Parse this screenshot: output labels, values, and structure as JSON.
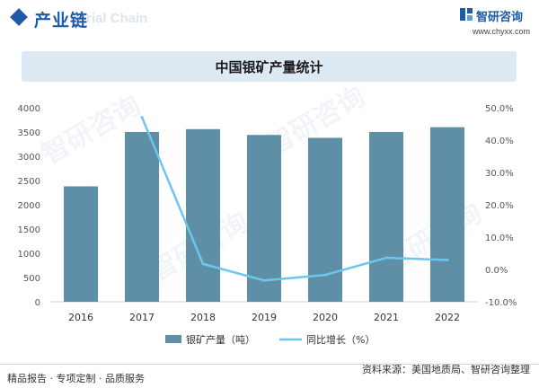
{
  "header": {
    "section_title": "产业链",
    "section_sub": "rial Chain",
    "brand_name": "智研咨询",
    "brand_url": "www.chyxx.com"
  },
  "watermark": "智研咨询",
  "footer": {
    "left": "精品报告 · 专项定制 · 品质服务",
    "right": "资料来源：美国地质局、智研咨询整理"
  },
  "colors": {
    "bar": "#5e8fa7",
    "line": "#6cc6ee",
    "brand": "#1e5aa8"
  },
  "chart_data": {
    "type": "bar",
    "title": "中国银矿产量统计",
    "categories": [
      "2016",
      "2017",
      "2018",
      "2019",
      "2020",
      "2021",
      "2022"
    ],
    "series": [
      {
        "name": "银矿产量（吨）",
        "type": "bar",
        "axis": "left",
        "values": [
          2380,
          3500,
          3560,
          3440,
          3380,
          3500,
          3600
        ]
      },
      {
        "name": "同比增长（%）",
        "type": "line",
        "axis": "right",
        "values": [
          null,
          47.1,
          1.7,
          -3.4,
          -1.7,
          3.6,
          2.9
        ]
      }
    ],
    "y_left": {
      "min": 0,
      "max": 4000,
      "ticks": [
        0,
        500,
        1000,
        1500,
        2000,
        2500,
        3000,
        3500,
        4000
      ]
    },
    "y_right": {
      "min": -10,
      "max": 50,
      "ticks": [
        -10,
        0,
        10,
        20,
        30,
        40,
        50
      ],
      "tick_labels": [
        "-10.0%",
        "0.0%",
        "10.0%",
        "20.0%",
        "30.0%",
        "40.0%",
        "50.0%"
      ]
    },
    "grid": false,
    "legend_position": "bottom"
  }
}
